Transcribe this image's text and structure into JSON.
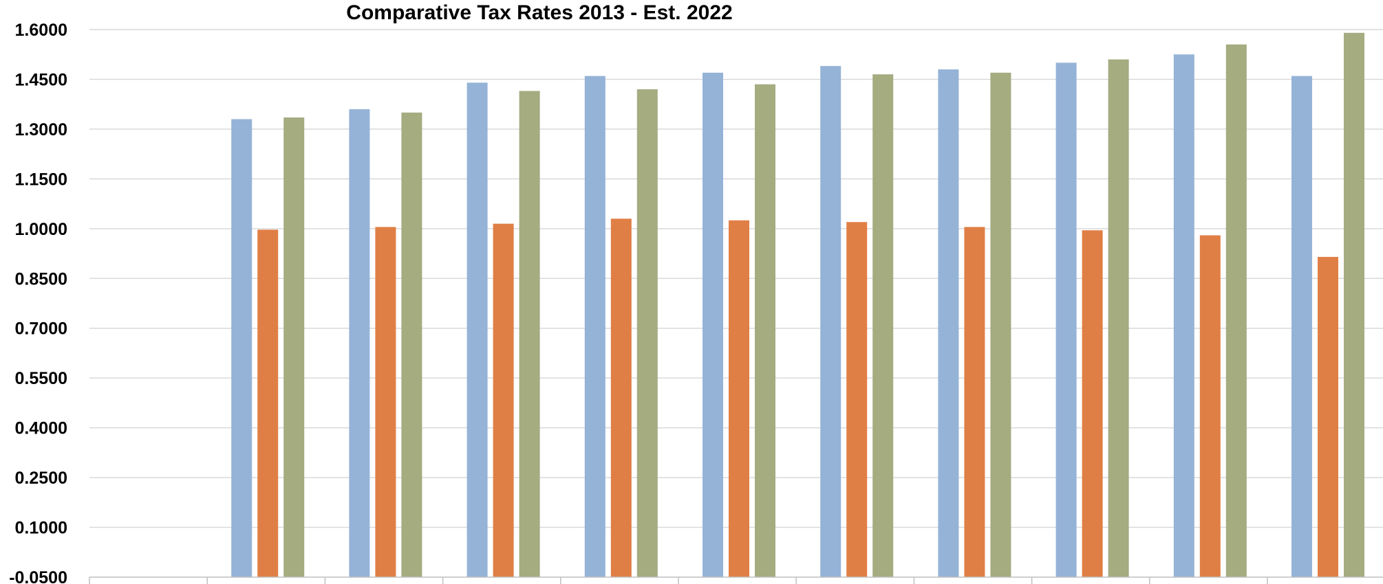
{
  "chart_data": {
    "type": "bar",
    "title": "Comparative Tax Rates 2013 - Est. 2022",
    "xlabel": "",
    "ylabel": "",
    "ylim": [
      -0.05,
      1.6
    ],
    "y_tick_values": [
      1.6,
      1.45,
      1.3,
      1.15,
      1.0,
      0.85,
      0.7,
      0.55,
      0.4,
      0.25,
      0.1,
      -0.05
    ],
    "y_tick_labels": [
      "1.6000",
      "1.4500",
      "1.3000",
      "1.1500",
      "1.0000",
      "0.8500",
      "0.7000",
      "0.5500",
      "0.4000",
      "0.2500",
      "0.1000",
      "-0.0500"
    ],
    "grid": true,
    "legend": "none",
    "num_categories": 11,
    "categories": [
      "",
      "",
      "",
      "",
      "",
      "",
      "",
      "",
      "",
      "",
      ""
    ],
    "series": [
      {
        "color": "#95b3d7",
        "values": [
          null,
          1.33,
          1.36,
          1.44,
          1.46,
          1.47,
          1.49,
          1.48,
          1.5,
          1.525,
          1.46
        ]
      },
      {
        "color": "#e07f45",
        "values": [
          null,
          0.997,
          1.005,
          1.015,
          1.03,
          1.025,
          1.02,
          1.005,
          0.995,
          0.98,
          0.915
        ]
      },
      {
        "color": "#a4ac80",
        "values": [
          null,
          1.335,
          1.35,
          1.415,
          1.42,
          1.435,
          1.465,
          1.47,
          1.51,
          1.555,
          1.59
        ]
      }
    ],
    "colors": {
      "grid": "#d9d9d9",
      "axis": "#bfbfbf",
      "text": "#000000"
    }
  }
}
